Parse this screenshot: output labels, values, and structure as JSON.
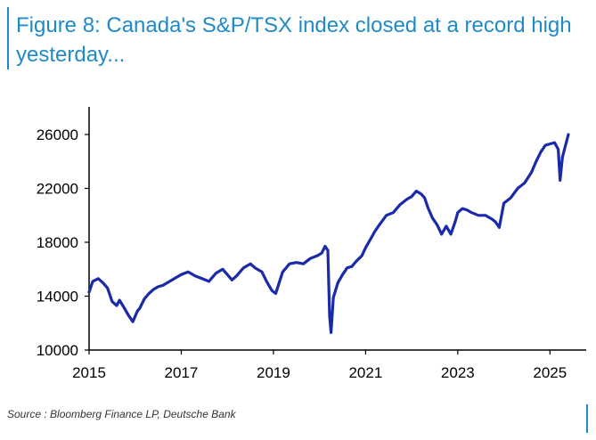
{
  "header": {
    "title": "Figure 8: Canada's S&P/TSX index closed at a record high yesterday..."
  },
  "footer": {
    "source": "Source : Bloomberg Finance LP, Deutsche Bank"
  },
  "colors": {
    "accent": "#1f8ac8",
    "series": "#1a2aa8",
    "axis": "#000000"
  },
  "chart_data": {
    "type": "line",
    "title": "",
    "xlabel": "",
    "ylabel": "",
    "xlim": [
      2015,
      2025.4
    ],
    "ylim": [
      10000,
      26000
    ],
    "x_ticks": [
      2015,
      2017,
      2019,
      2021,
      2023,
      2025
    ],
    "x_tick_labels": [
      "2015",
      "2017",
      "2019",
      "2021",
      "2023",
      "2025"
    ],
    "y_ticks": [
      10000,
      14000,
      18000,
      22000,
      26000
    ],
    "y_tick_labels": [
      "10000",
      "14000",
      "18000",
      "22000",
      "26000"
    ],
    "grid": false,
    "series": [
      {
        "name": "",
        "color": "#1a2aa8",
        "x": [
          2015.0,
          2015.08,
          2015.2,
          2015.3,
          2015.4,
          2015.5,
          2015.6,
          2015.66,
          2015.75,
          2015.85,
          2015.95,
          2016.05,
          2016.1,
          2016.2,
          2016.3,
          2016.4,
          2016.5,
          2016.6,
          2016.75,
          2016.9,
          2017.0,
          2017.15,
          2017.3,
          2017.45,
          2017.6,
          2017.75,
          2017.9,
          2018.0,
          2018.1,
          2018.2,
          2018.35,
          2018.5,
          2018.6,
          2018.75,
          2018.85,
          2018.97,
          2019.05,
          2019.2,
          2019.35,
          2019.5,
          2019.65,
          2019.8,
          2019.95,
          2020.05,
          2020.12,
          2020.18,
          2020.22,
          2020.25,
          2020.3,
          2020.4,
          2020.5,
          2020.6,
          2020.7,
          2020.8,
          2020.92,
          2021.0,
          2021.1,
          2021.2,
          2021.3,
          2021.45,
          2021.6,
          2021.75,
          2021.9,
          2022.0,
          2022.1,
          2022.2,
          2022.28,
          2022.35,
          2022.45,
          2022.55,
          2022.65,
          2022.75,
          2022.85,
          2022.95,
          2023.0,
          2023.1,
          2023.2,
          2023.3,
          2023.45,
          2023.6,
          2023.75,
          2023.82,
          2023.9,
          2024.0,
          2024.15,
          2024.3,
          2024.45,
          2024.6,
          2024.7,
          2024.8,
          2024.9,
          2025.0,
          2025.1,
          2025.18,
          2025.22,
          2025.27,
          2025.33,
          2025.4
        ],
        "values": [
          14300,
          15100,
          15300,
          15000,
          14600,
          13600,
          13300,
          13700,
          13200,
          12600,
          12100,
          12900,
          13100,
          13800,
          14200,
          14500,
          14700,
          14800,
          15100,
          15400,
          15600,
          15800,
          15500,
          15300,
          15100,
          15700,
          16000,
          15600,
          15200,
          15500,
          16100,
          16400,
          16100,
          15800,
          15100,
          14400,
          14200,
          15800,
          16400,
          16500,
          16400,
          16800,
          17000,
          17200,
          17700,
          17400,
          12500,
          11300,
          13900,
          15000,
          15600,
          16100,
          16200,
          16600,
          17000,
          17600,
          18200,
          18800,
          19300,
          20000,
          20200,
          20800,
          21200,
          21400,
          21800,
          21600,
          21300,
          20600,
          19800,
          19300,
          18600,
          19200,
          18600,
          19600,
          20200,
          20500,
          20400,
          20200,
          20000,
          20000,
          19700,
          19500,
          19100,
          20900,
          21300,
          22000,
          22400,
          23200,
          24000,
          24700,
          25200,
          25300,
          25400,
          24900,
          22600,
          24300,
          25100,
          26000
        ]
      }
    ]
  }
}
